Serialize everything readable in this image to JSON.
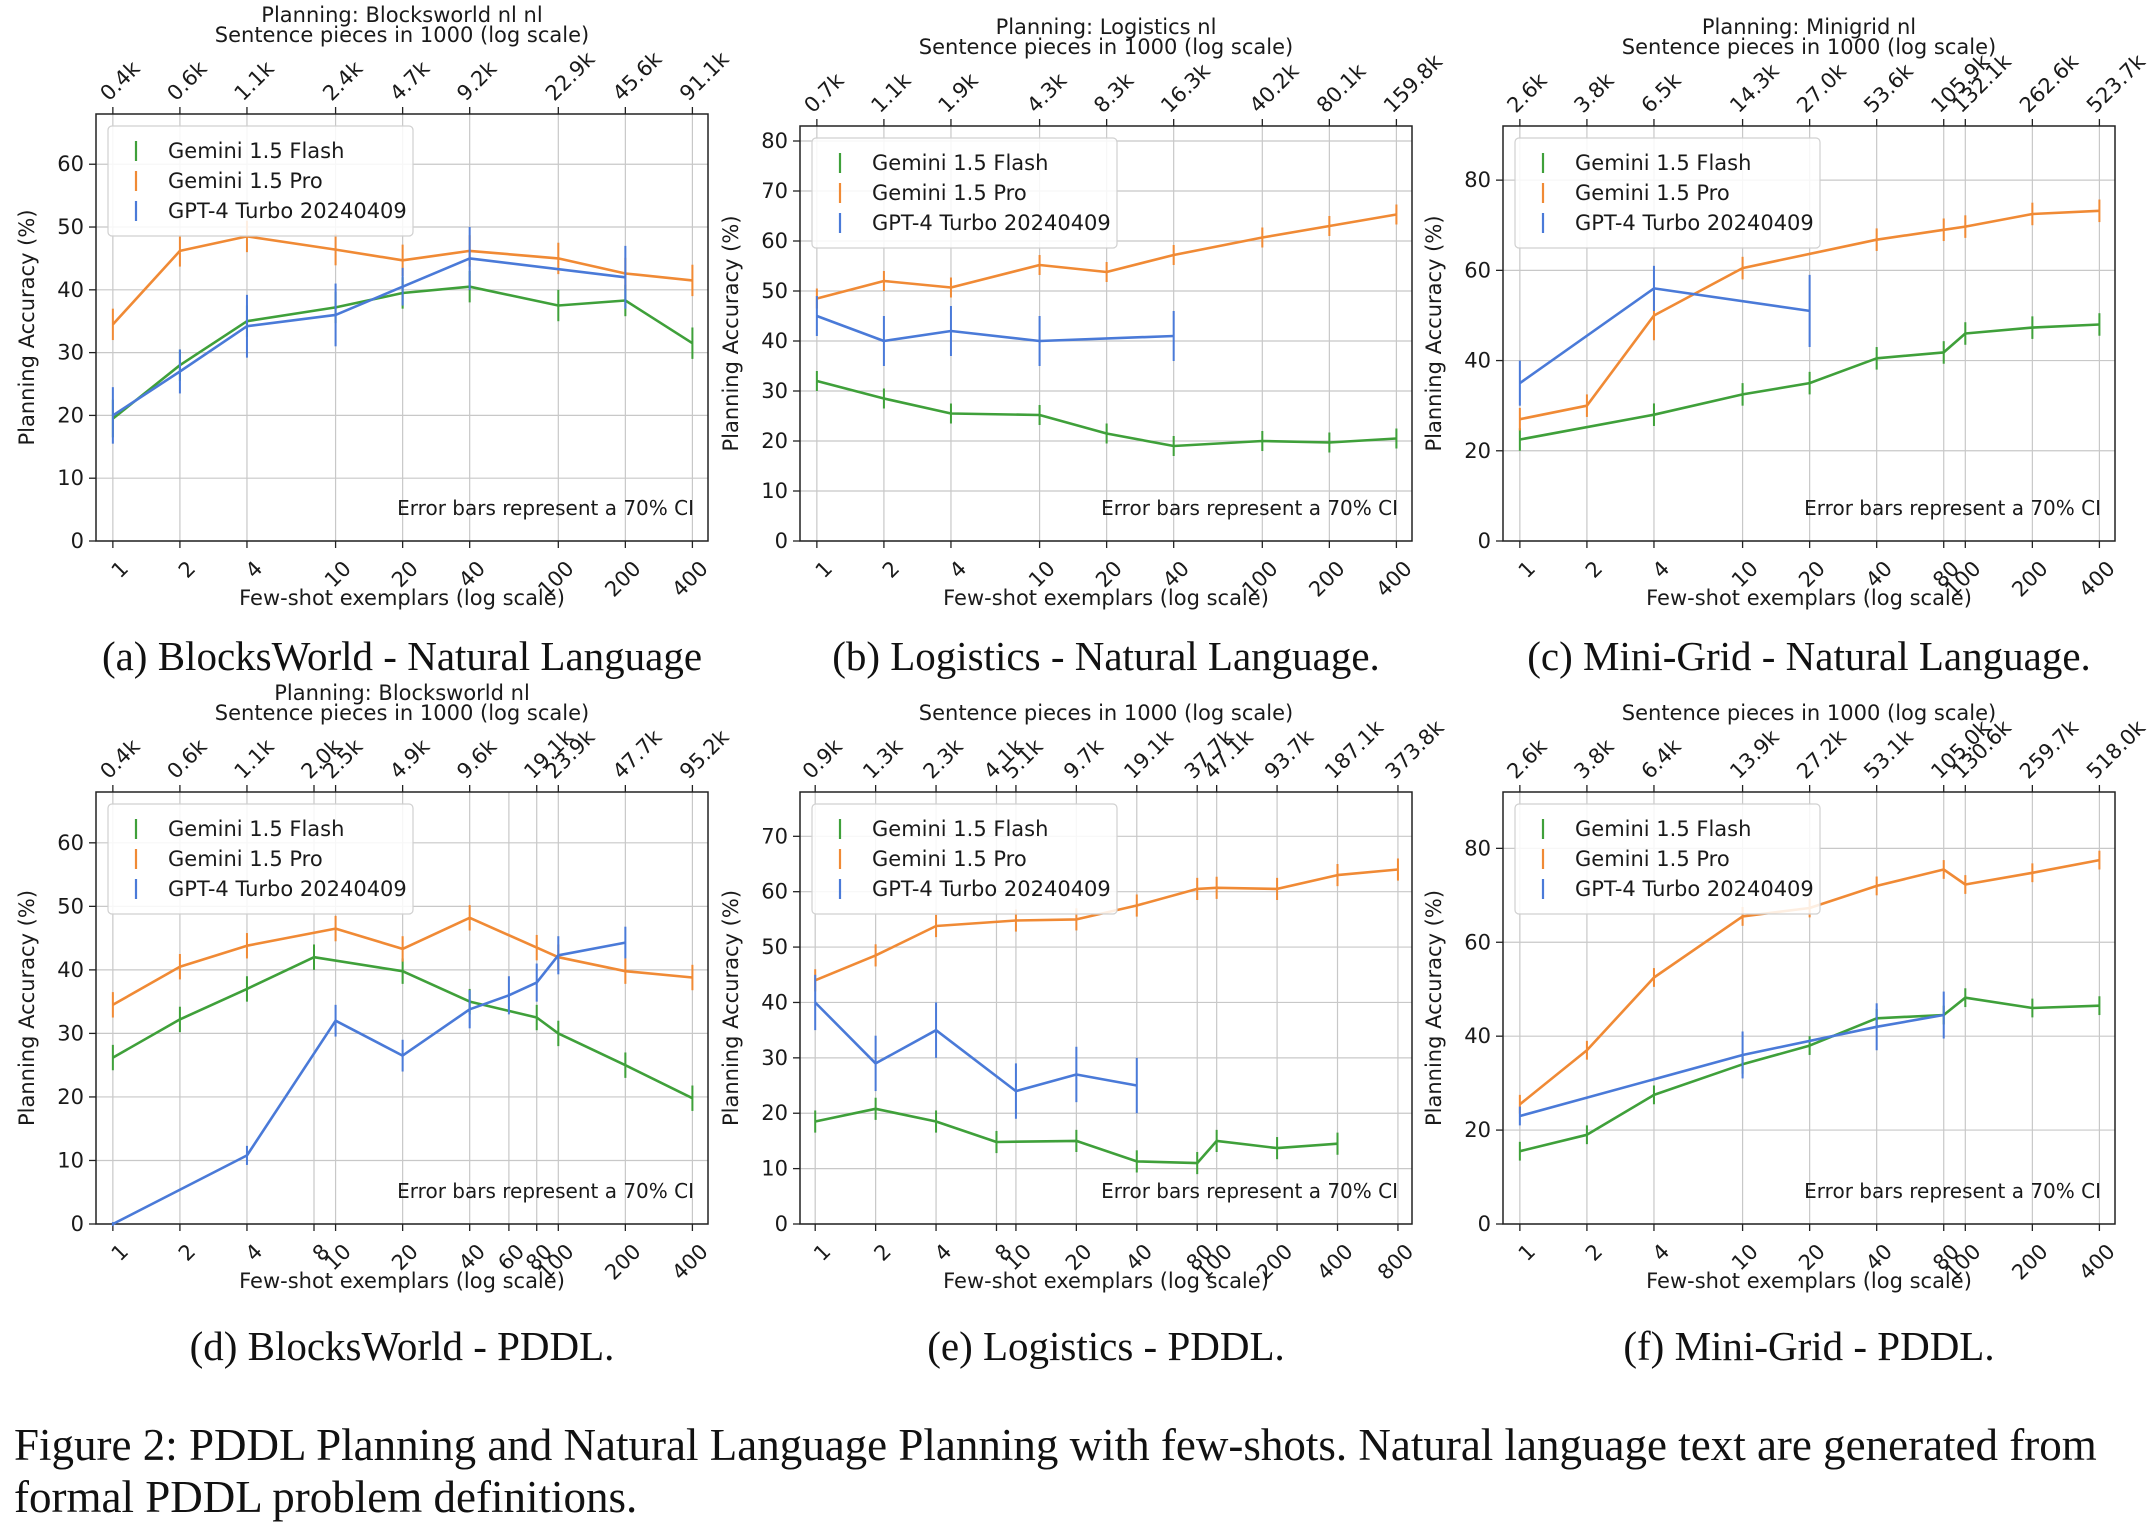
{
  "figure_caption": {
    "line1": "Figure 2: PDDL Planning and Natural Language Planning with few-shots. Natural language text are generated from",
    "line2": "formal PDDL problem definitions."
  },
  "colors": {
    "flash": "#3fa03a",
    "pro": "#f08a35",
    "gpt4": "#4a7ad8"
  },
  "chart_data": [
    {
      "type": "line",
      "subcaption": "(a) BlocksWorld - Natural Language",
      "title": "Planning: Blocksworld nl nl",
      "top_axis_label": "Sentence pieces in 1000 (log scale)",
      "xlabel": "Few-shot exemplars (log scale)",
      "ylabel": "Planning Accuracy (%)",
      "x_scale": "log",
      "xlim": [
        0.84,
        470
      ],
      "ylim": [
        0,
        68
      ],
      "x_ticks": [
        1,
        2,
        4,
        10,
        20,
        40,
        100,
        200,
        400
      ],
      "x_tick_labels": [
        "1",
        "2",
        "4",
        "10",
        "20",
        "40",
        "100",
        "200",
        "400"
      ],
      "y_ticks": [
        0,
        10,
        20,
        30,
        40,
        50,
        60
      ],
      "y_tick_labels": [
        "0",
        "10",
        "20",
        "30",
        "40",
        "50",
        "60"
      ],
      "top_ticks": [
        1,
        2,
        4,
        10,
        20,
        40,
        100,
        200,
        400
      ],
      "top_tick_labels": [
        "0.4k",
        "0.6k",
        "1.1k",
        "2.4k",
        "4.7k",
        "9.2k",
        "22.9k",
        "45.6k",
        "91.1k"
      ],
      "annotation": "Error bars represent a 70% CI",
      "legend_position": "upper-left",
      "series": [
        {
          "name": "Gemini 1.5 Flash",
          "color_key": "flash",
          "x": [
            1,
            2,
            4,
            10,
            20,
            40,
            100,
            200,
            400
          ],
          "y": [
            19.5,
            28,
            35,
            37.2,
            39.5,
            40.5,
            37.5,
            38.3,
            31.5
          ],
          "err": [
            3,
            2.5,
            2.5,
            2.5,
            2.5,
            2.5,
            2.5,
            2.5,
            2.5
          ]
        },
        {
          "name": "Gemini 1.5 Pro",
          "color_key": "pro",
          "x": [
            1,
            2,
            4,
            10,
            20,
            40,
            100,
            200,
            400
          ],
          "y": [
            34.5,
            46.2,
            48.5,
            46.4,
            44.7,
            46.2,
            45,
            42.6,
            41.5
          ],
          "err": [
            2.5,
            2.5,
            2.5,
            2.5,
            2.5,
            2.5,
            2.5,
            2.5,
            2.5
          ]
        },
        {
          "name": "GPT-4 Turbo 20240409",
          "color_key": "gpt4",
          "x": [
            1,
            2,
            4,
            10,
            20,
            40,
            200
          ],
          "y": [
            20,
            27,
            34.2,
            36,
            40.5,
            45,
            42
          ],
          "err": [
            4.5,
            3.5,
            5,
            5,
            3,
            5,
            5
          ]
        }
      ]
    },
    {
      "type": "line",
      "subcaption": "(b) Logistics - Natural Language.",
      "title": "Planning: Logistics nl",
      "top_axis_label": "Sentence pieces in 1000 (log scale)",
      "xlabel": "Few-shot exemplars (log scale)",
      "ylabel": "Planning Accuracy (%)",
      "x_scale": "log",
      "xlim": [
        0.84,
        470
      ],
      "ylim": [
        0,
        83
      ],
      "x_ticks": [
        1,
        2,
        4,
        10,
        20,
        40,
        100,
        200,
        400
      ],
      "x_tick_labels": [
        "1",
        "2",
        "4",
        "10",
        "20",
        "40",
        "100",
        "200",
        "400"
      ],
      "y_ticks": [
        0,
        10,
        20,
        30,
        40,
        50,
        60,
        70,
        80
      ],
      "y_tick_labels": [
        "0",
        "10",
        "20",
        "30",
        "40",
        "50",
        "60",
        "70",
        "80"
      ],
      "top_ticks": [
        1,
        2,
        4,
        10,
        20,
        40,
        100,
        200,
        400
      ],
      "top_tick_labels": [
        "0.7k",
        "1.1k",
        "1.9k",
        "4.3k",
        "8.3k",
        "16.3k",
        "40.2k",
        "80.1k",
        "159.8k"
      ],
      "annotation": "Error bars represent a 70% CI",
      "legend_position": "upper-left",
      "series": [
        {
          "name": "Gemini 1.5 Flash",
          "color_key": "flash",
          "x": [
            1,
            2,
            4,
            10,
            20,
            40,
            100,
            200,
            400
          ],
          "y": [
            32,
            28.5,
            25.5,
            25.2,
            21.5,
            19,
            20,
            19.7,
            20.5
          ],
          "err": [
            2,
            2,
            2,
            2,
            2,
            2,
            2,
            2,
            2
          ]
        },
        {
          "name": "Gemini 1.5 Pro",
          "color_key": "pro",
          "x": [
            1,
            2,
            4,
            10,
            20,
            40,
            100,
            200,
            400
          ],
          "y": [
            48.5,
            52,
            50.7,
            55.2,
            53.8,
            57.2,
            60.7,
            63,
            65.3
          ],
          "err": [
            2,
            2,
            2,
            2,
            2,
            2,
            2,
            2,
            2
          ]
        },
        {
          "name": "GPT-4 Turbo 20240409",
          "color_key": "gpt4",
          "x": [
            1,
            2,
            4,
            10,
            40
          ],
          "y": [
            45,
            40,
            42,
            40,
            41
          ],
          "err": [
            4,
            5,
            5,
            5,
            5
          ]
        }
      ]
    },
    {
      "type": "line",
      "subcaption": "(c) Mini-Grid - Natural Language.",
      "title": "Planning: Minigrid nl",
      "top_axis_label": "Sentence pieces in 1000 (log scale)",
      "xlabel": "Few-shot exemplars (log scale)",
      "ylabel": "Planning Accuracy (%)",
      "x_scale": "log",
      "xlim": [
        0.84,
        470
      ],
      "ylim": [
        0,
        92
      ],
      "x_ticks": [
        1,
        2,
        4,
        10,
        20,
        40,
        80,
        100,
        200,
        400
      ],
      "x_tick_labels": [
        "1",
        "2",
        "4",
        "10",
        "20",
        "40",
        "80",
        "100",
        "200",
        "400"
      ],
      "y_ticks": [
        0,
        20,
        40,
        60,
        80
      ],
      "y_tick_labels": [
        "0",
        "20",
        "40",
        "60",
        "80"
      ],
      "top_ticks": [
        1,
        2,
        4,
        10,
        20,
        40,
        80,
        100,
        200,
        400
      ],
      "top_tick_labels": [
        "2.6k",
        "3.8k",
        "6.5k",
        "14.3k",
        "27.0k",
        "53.6k",
        "105.9k",
        "132.1k",
        "262.6k",
        "523.7k"
      ],
      "annotation": "Error bars represent a 70% CI",
      "legend_position": "upper-left",
      "series": [
        {
          "name": "Gemini 1.5 Flash",
          "color_key": "flash",
          "x": [
            1,
            4,
            10,
            20,
            40,
            80,
            100,
            200,
            400
          ],
          "y": [
            22.5,
            28,
            32.5,
            35,
            40.5,
            41.8,
            46,
            47.3,
            48
          ],
          "err": [
            2.5,
            2.5,
            2.5,
            2.5,
            2.5,
            2.5,
            2.5,
            2.5,
            2.5
          ]
        },
        {
          "name": "Gemini 1.5 Pro",
          "color_key": "pro",
          "x": [
            1,
            2,
            4,
            10,
            40,
            80,
            100,
            200,
            400
          ],
          "y": [
            27,
            30,
            50,
            60.5,
            66.8,
            69,
            69.7,
            72.5,
            73.2
          ],
          "err": [
            2.5,
            2.5,
            5.5,
            2.5,
            2.5,
            2.5,
            2.5,
            2.5,
            2.5
          ]
        },
        {
          "name": "GPT-4 Turbo 20240409",
          "color_key": "gpt4",
          "x": [
            1,
            4,
            20
          ],
          "y": [
            35,
            56,
            51
          ],
          "err": [
            5,
            5,
            8
          ]
        }
      ]
    },
    {
      "type": "line",
      "subcaption": "(d) BlocksWorld - PDDL.",
      "title": "Planning: Blocksworld nl",
      "top_axis_label": "Sentence pieces in 1000 (log scale)",
      "xlabel": "Few-shot exemplars (log scale)",
      "ylabel": "Planning Accuracy (%)",
      "x_scale": "log",
      "xlim": [
        0.84,
        470
      ],
      "ylim": [
        0,
        68
      ],
      "x_ticks": [
        1,
        2,
        4,
        8,
        10,
        20,
        40,
        60,
        80,
        100,
        200,
        400
      ],
      "x_tick_labels": [
        "1",
        "2",
        "4",
        "8",
        "10",
        "20",
        "40",
        "60",
        "80",
        "100",
        "200",
        "400"
      ],
      "y_ticks": [
        0,
        10,
        20,
        30,
        40,
        50,
        60
      ],
      "y_tick_labels": [
        "0",
        "10",
        "20",
        "30",
        "40",
        "50",
        "60"
      ],
      "top_ticks": [
        1,
        2,
        4,
        8,
        10,
        20,
        40,
        80,
        100,
        200,
        400
      ],
      "top_tick_labels": [
        "0.4k",
        "0.6k",
        "1.1k",
        "2.0k",
        "2.5k",
        "4.9k",
        "9.6k",
        "19.1k",
        "23.9k",
        "47.7k",
        "95.2k"
      ],
      "annotation": "Error bars represent a 70% CI",
      "legend_position": "upper-left",
      "series": [
        {
          "name": "Gemini 1.5 Flash",
          "color_key": "flash",
          "x": [
            1,
            2,
            4,
            8,
            20,
            40,
            80,
            100,
            200,
            400
          ],
          "y": [
            26.2,
            32.2,
            37,
            42,
            39.8,
            35,
            32.5,
            30,
            25,
            19.8
          ],
          "err": [
            2,
            2,
            2,
            2,
            2,
            2,
            2,
            2,
            2,
            2
          ]
        },
        {
          "name": "Gemini 1.5 Pro",
          "color_key": "pro",
          "x": [
            1,
            2,
            4,
            10,
            20,
            40,
            80,
            100,
            200,
            400
          ],
          "y": [
            34.5,
            40.5,
            43.8,
            46.5,
            43.3,
            48.2,
            43.5,
            42,
            39.8,
            38.8
          ],
          "err": [
            2,
            2,
            2,
            2,
            2,
            2,
            2,
            2,
            2,
            2
          ]
        },
        {
          "name": "GPT-4 Turbo 20240409",
          "color_key": "gpt4",
          "x": [
            1,
            4,
            10,
            20,
            40,
            60,
            80,
            100,
            200
          ],
          "y": [
            0,
            10.8,
            32,
            26.5,
            33.8,
            36,
            38,
            42.3,
            44.3
          ],
          "err": [
            0.3,
            1.5,
            2.5,
            2.5,
            3,
            3,
            3,
            3,
            2.5
          ]
        }
      ]
    },
    {
      "type": "line",
      "subcaption": "(e) Logistics - PDDL.",
      "title": "",
      "top_axis_label": "Sentence pieces in 1000 (log scale)",
      "xlabel": "Few-shot exemplars (log scale)",
      "ylabel": "Planning Accuracy (%)",
      "x_scale": "log",
      "xlim": [
        0.84,
        940
      ],
      "ylim": [
        0,
        78
      ],
      "x_ticks": [
        1,
        2,
        4,
        8,
        10,
        20,
        40,
        80,
        100,
        200,
        400,
        800
      ],
      "x_tick_labels": [
        "1",
        "2",
        "4",
        "8",
        "10",
        "20",
        "40",
        "80",
        "100",
        "200",
        "400",
        "800"
      ],
      "y_ticks": [
        0,
        10,
        20,
        30,
        40,
        50,
        60,
        70
      ],
      "y_tick_labels": [
        "0",
        "10",
        "20",
        "30",
        "40",
        "50",
        "60",
        "70"
      ],
      "top_ticks": [
        1,
        2,
        4,
        8,
        10,
        20,
        40,
        80,
        100,
        200,
        400,
        800
      ],
      "top_tick_labels": [
        "0.9k",
        "1.3k",
        "2.3k",
        "4.1k",
        "5.1k",
        "9.7k",
        "19.1k",
        "37.7k",
        "47.1k",
        "93.7k",
        "187.1k",
        "373.8k"
      ],
      "annotation": "Error bars represent a 70% CI",
      "legend_position": "upper-left",
      "series": [
        {
          "name": "Gemini 1.5 Flash",
          "color_key": "flash",
          "x": [
            1,
            2,
            4,
            8,
            20,
            40,
            80,
            100,
            200,
            400
          ],
          "y": [
            18.5,
            20.8,
            18.5,
            14.8,
            15,
            11.3,
            11,
            15,
            13.7,
            14.5
          ],
          "err": [
            2,
            2,
            2,
            2,
            2,
            2,
            2,
            2,
            2,
            2
          ]
        },
        {
          "name": "Gemini 1.5 Pro",
          "color_key": "pro",
          "x": [
            1,
            2,
            4,
            10,
            20,
            40,
            80,
            100,
            200,
            400,
            800
          ],
          "y": [
            44,
            48.5,
            53.8,
            54.8,
            55,
            57.5,
            60.5,
            60.7,
            60.5,
            63,
            64
          ],
          "err": [
            2,
            2,
            2,
            2,
            2,
            2,
            2,
            2,
            2,
            2,
            2
          ]
        },
        {
          "name": "GPT-4 Turbo 20240409",
          "color_key": "gpt4",
          "x": [
            1,
            2,
            4,
            10,
            20,
            40
          ],
          "y": [
            40,
            29,
            35,
            24,
            27,
            25
          ],
          "err": [
            5,
            5,
            5,
            5,
            5,
            5
          ]
        }
      ]
    },
    {
      "type": "line",
      "subcaption": "(f) Mini-Grid - PDDL.",
      "title": "",
      "top_axis_label": "Sentence pieces in 1000 (log scale)",
      "xlabel": "Few-shot exemplars (log scale)",
      "ylabel": "Planning Accuracy (%)",
      "x_scale": "log",
      "xlim": [
        0.84,
        470
      ],
      "ylim": [
        0,
        92
      ],
      "x_ticks": [
        1,
        2,
        4,
        10,
        20,
        40,
        80,
        100,
        200,
        400
      ],
      "x_tick_labels": [
        "1",
        "2",
        "4",
        "10",
        "20",
        "40",
        "80",
        "100",
        "200",
        "400"
      ],
      "y_ticks": [
        0,
        20,
        40,
        60,
        80
      ],
      "y_tick_labels": [
        "0",
        "20",
        "40",
        "60",
        "80"
      ],
      "top_ticks": [
        1,
        2,
        4,
        10,
        20,
        40,
        80,
        100,
        200,
        400
      ],
      "top_tick_labels": [
        "2.6k",
        "3.8k",
        "6.4k",
        "13.9k",
        "27.2k",
        "53.1k",
        "105.0k",
        "130.6k",
        "259.7k",
        "518.0k"
      ],
      "annotation": "Error bars represent a 70% CI",
      "legend_position": "upper-left",
      "series": [
        {
          "name": "Gemini 1.5 Flash",
          "color_key": "flash",
          "x": [
            1,
            2,
            4,
            10,
            20,
            40,
            80,
            100,
            200,
            400
          ],
          "y": [
            15.5,
            19,
            27.5,
            34,
            38,
            43.8,
            44.5,
            48.2,
            46,
            46.5
          ],
          "err": [
            2,
            2,
            2,
            2,
            2,
            2,
            2,
            2,
            2,
            2
          ]
        },
        {
          "name": "Gemini 1.5 Pro",
          "color_key": "pro",
          "x": [
            1,
            2,
            4,
            10,
            20,
            40,
            80,
            100,
            200,
            400
          ],
          "y": [
            25.5,
            37,
            52.5,
            65.5,
            67.3,
            72,
            75.5,
            72.3,
            74.8,
            77.5
          ],
          "err": [
            2,
            2,
            2,
            2,
            2,
            2,
            2,
            2,
            2,
            2
          ]
        },
        {
          "name": "GPT-4 Turbo 20240409",
          "color_key": "gpt4",
          "x": [
            1,
            10,
            40,
            80
          ],
          "y": [
            23,
            36,
            42,
            44.5
          ],
          "err": [
            2,
            5,
            5,
            5
          ]
        }
      ]
    }
  ]
}
